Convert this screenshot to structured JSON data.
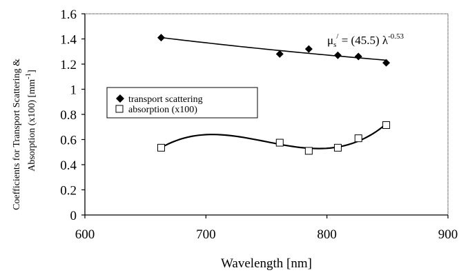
{
  "chart_data": {
    "type": "scatter",
    "xlabel": "Wavelength [nm]",
    "ylabel_line1": "Coefficients for Transport Scattering  &",
    "ylabel_line2": "Absorption (x100)   [mm",
    "ylabel_unit_sup": "-1",
    "ylabel_close": "]",
    "xlim": [
      600,
      900
    ],
    "ylim": [
      0,
      1.6
    ],
    "x_ticks": [
      "600",
      "700",
      "800",
      "900"
    ],
    "y_ticks": [
      "0",
      "0.2",
      "0.4",
      "0.6",
      "0.8",
      "1",
      "1.2",
      "1.4",
      "1.6"
    ],
    "x_tick_values": [
      600,
      700,
      800,
      900
    ],
    "y_tick_values": [
      0,
      0.2,
      0.4,
      0.6,
      0.8,
      1.0,
      1.2,
      1.4,
      1.6
    ],
    "grid": false,
    "legend_position": "center-left",
    "series": [
      {
        "name": "transport scattering",
        "marker": "filled-diamond",
        "points": [
          [
            663,
            1.41
          ],
          [
            761,
            1.28
          ],
          [
            785,
            1.32
          ],
          [
            809,
            1.27
          ],
          [
            826,
            1.26
          ],
          [
            849,
            1.21
          ]
        ],
        "trendline": "power"
      },
      {
        "name": "absorption (x100)",
        "marker": "open-square",
        "points": [
          [
            663,
            0.535
          ],
          [
            761,
            0.575
          ],
          [
            785,
            0.51
          ],
          [
            809,
            0.535
          ],
          [
            826,
            0.61
          ],
          [
            849,
            0.715
          ]
        ],
        "trendline": "polynomial"
      }
    ],
    "annotation": {
      "mu": "μ",
      "sub": "s",
      "prime": "/",
      "rest": " = (45.5) λ",
      "exponent": "-0.53"
    }
  }
}
